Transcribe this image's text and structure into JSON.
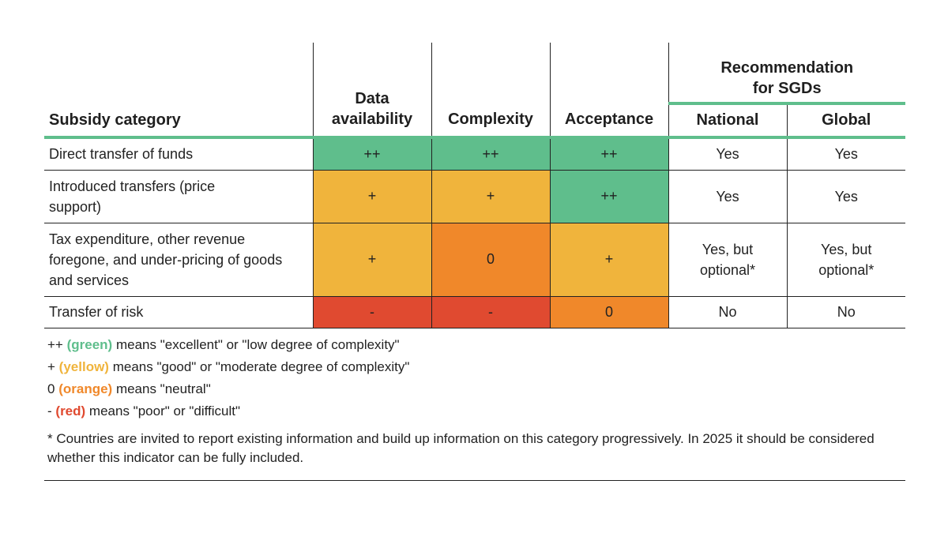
{
  "chart_data": {
    "type": "table",
    "columns": {
      "category": "Subsidy category",
      "data_availability": "Data availability",
      "complexity": "Complexity",
      "acceptance": "Acceptance",
      "recommendation": "Recommendation for SGDs",
      "national": "National",
      "global": "Global"
    },
    "rows": [
      {
        "category": "Direct transfer of funds",
        "data_availability": "++",
        "complexity": "++",
        "acceptance": "++",
        "national": "Yes",
        "global": "Yes"
      },
      {
        "category": "Introduced transfers (price support)",
        "data_availability": "+",
        "complexity": "+",
        "acceptance": "++",
        "national": "Yes",
        "global": "Yes"
      },
      {
        "category": "Tax expenditure, other revenue foregone, and under-pricing of goods and services",
        "data_availability": "+",
        "complexity": "0",
        "acceptance": "+",
        "national": "Yes, but optional*",
        "global": "Yes, but optional*"
      },
      {
        "category": "Transfer of risk",
        "data_availability": "-",
        "complexity": "-",
        "acceptance": "0",
        "national": "No",
        "global": "No"
      }
    ],
    "legend": [
      {
        "symbol": "++",
        "color_name": "(green)",
        "text": "means \"excellent\" or \"low degree of complexity\"",
        "color": "#5fbe8c"
      },
      {
        "symbol": "+",
        "color_name": "(yellow)",
        "text": "means \"good\" or \"moderate degree of complexity\"",
        "color": "#f0b43c"
      },
      {
        "symbol": "0",
        "color_name": "(orange)",
        "text": "means \"neutral\"",
        "color": "#f0882a"
      },
      {
        "symbol": "-",
        "color_name": "(red)",
        "text": "means \"poor\" or \"difficult\"",
        "color": "#e04a30"
      }
    ],
    "footnote": "* Countries are invited to report existing information and build up information on this category progressively. In 2025 it should be considered whether this indicator can be fully included."
  },
  "colors": {
    "++": "#5fbe8c",
    "+": "#f0b43c",
    "0": "#f0882a",
    "-": "#e04a30",
    "header_rule": "#5fbe8c"
  }
}
